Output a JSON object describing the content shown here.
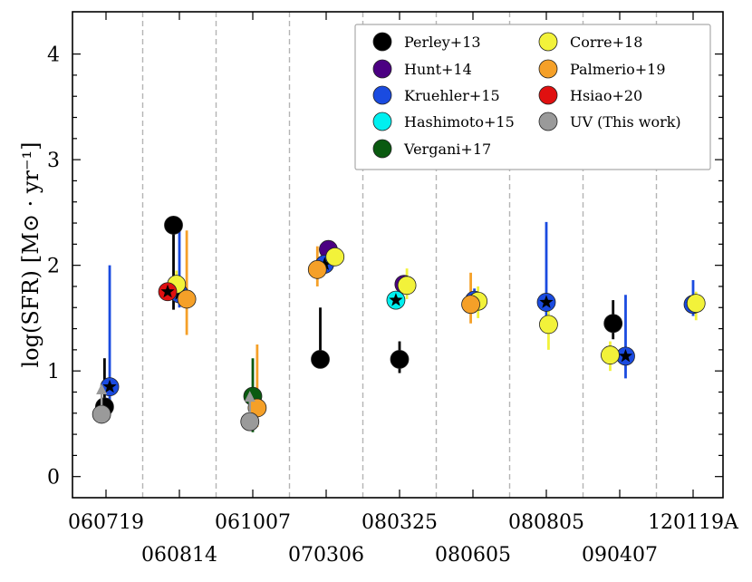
{
  "chart_data": {
    "type": "scatter",
    "ylabel_text": "log(SFR)",
    "ylabel_unit": "[M⊙ · yr⁻¹]",
    "ylim": [
      -0.2,
      4.4
    ],
    "yticks": [
      0,
      1,
      2,
      3,
      4
    ],
    "ytick_labels": [
      "0",
      "1",
      "2",
      "3",
      "4"
    ],
    "grid": false,
    "legend_position": "top-right",
    "categories_row1": [
      "060719",
      "061007",
      "080325",
      "080805",
      "120119A"
    ],
    "categories_row2": [
      "060814",
      "070306",
      "080605",
      "090407"
    ],
    "categories": [
      "060719",
      "060814",
      "061007",
      "070306",
      "080325",
      "080605",
      "080805",
      "090407",
      "120119A"
    ],
    "series": [
      {
        "name": "Perley+13",
        "color": "#000000",
        "points": [
          {
            "cat": 0,
            "offset": -0.02,
            "y": 0.66,
            "lo": 0.66,
            "hi": 1.12
          },
          {
            "cat": 1,
            "offset": -0.08,
            "y": 2.38,
            "lo": 1.58,
            "hi": 2.38
          },
          {
            "cat": 3,
            "offset": -0.08,
            "y": 1.11,
            "lo": 1.11,
            "hi": 1.6
          },
          {
            "cat": 4,
            "offset": 0.0,
            "y": 1.11,
            "lo": 0.98,
            "hi": 1.28
          },
          {
            "cat": 7,
            "offset": -0.09,
            "y": 1.45,
            "lo": 1.3,
            "hi": 1.67
          }
        ]
      },
      {
        "name": "Hunt+14",
        "color": "#4b0082",
        "points": [
          {
            "cat": 3,
            "offset": 0.03,
            "y": 2.15
          },
          {
            "cat": 4,
            "offset": 0.06,
            "y": 1.82
          }
        ]
      },
      {
        "name": "Kruehler+15",
        "color": "#1a4be0",
        "star": true,
        "points": [
          {
            "cat": 0,
            "offset": 0.05,
            "y": 0.85,
            "lo": 0.66,
            "hi": 2.0
          },
          {
            "cat": 1,
            "offset": 0.0,
            "y": 1.73,
            "lo": 1.6,
            "hi": 2.35
          },
          {
            "cat": 3,
            "offset": -0.02,
            "y": 2.01
          },
          {
            "cat": 5,
            "offset": 0.02,
            "y": 1.67,
            "lo": 1.55,
            "hi": 1.78
          },
          {
            "cat": 6,
            "offset": 0.0,
            "y": 1.65,
            "lo": 1.42,
            "hi": 2.41
          },
          {
            "cat": 7,
            "offset": 0.08,
            "y": 1.14,
            "lo": 0.93,
            "hi": 1.72
          },
          {
            "cat": 8,
            "offset": 0.0,
            "y": 1.63,
            "lo": 1.52,
            "hi": 1.86
          }
        ]
      },
      {
        "name": "Hashimoto+15",
        "color": "#00f0f0",
        "star": true,
        "points": [
          {
            "cat": 4,
            "offset": -0.05,
            "y": 1.67
          }
        ]
      },
      {
        "name": "Vergani+17",
        "color": "#0a5a10",
        "points": [
          {
            "cat": 2,
            "offset": 0.0,
            "y": 0.76,
            "lo": 0.42,
            "hi": 1.12
          }
        ]
      },
      {
        "name": "Corre+18",
        "color": "#f2f23a",
        "points": [
          {
            "cat": 1,
            "offset": -0.04,
            "y": 1.82,
            "lo": 1.72,
            "hi": 1.95
          },
          {
            "cat": 3,
            "offset": 0.12,
            "y": 2.08
          },
          {
            "cat": 4,
            "offset": 0.1,
            "y": 1.81,
            "lo": 1.68,
            "hi": 1.97
          },
          {
            "cat": 5,
            "offset": 0.07,
            "y": 1.66,
            "lo": 1.5,
            "hi": 1.8
          },
          {
            "cat": 6,
            "offset": 0.03,
            "y": 1.44,
            "lo": 1.2,
            "hi": 1.6
          },
          {
            "cat": 7,
            "offset": -0.13,
            "y": 1.15,
            "lo": 1.0,
            "hi": 1.28
          },
          {
            "cat": 8,
            "offset": 0.04,
            "y": 1.64,
            "lo": 1.48,
            "hi": 1.75
          }
        ]
      },
      {
        "name": "Palmerio+19",
        "color": "#f5a028",
        "points": [
          {
            "cat": 1,
            "offset": 0.1,
            "y": 1.68,
            "lo": 1.34,
            "hi": 2.33
          },
          {
            "cat": 2,
            "offset": 0.06,
            "y": 0.65,
            "lo": 0.47,
            "hi": 1.25
          },
          {
            "cat": 3,
            "offset": -0.12,
            "y": 1.96,
            "lo": 1.8,
            "hi": 2.18
          },
          {
            "cat": 5,
            "offset": -0.03,
            "y": 1.63,
            "lo": 1.45,
            "hi": 1.93
          }
        ]
      },
      {
        "name": "Hsiao+20",
        "color": "#e01010",
        "star": true,
        "points": [
          {
            "cat": 1,
            "offset": -0.16,
            "y": 1.75
          }
        ]
      },
      {
        "name": "UV (This work)",
        "color": "#9a9a9a",
        "arrow": true,
        "points": [
          {
            "cat": 0,
            "offset": -0.06,
            "y": 0.59
          },
          {
            "cat": 2,
            "offset": -0.04,
            "y": 0.52
          }
        ]
      }
    ]
  }
}
